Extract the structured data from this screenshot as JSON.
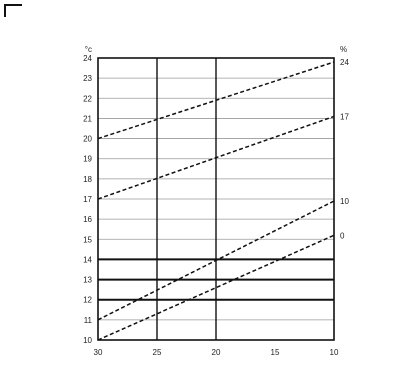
{
  "chart_data": {
    "type": "line",
    "title": "",
    "subtitle": "",
    "xlabel": "",
    "xlabel_line2": "",
    "ylabel_left": "",
    "ylabel_left_line2": "",
    "ylabel_right": "",
    "ylabel_right_line2": "",
    "y_unit": "°c",
    "right_unit": "%",
    "xlim": [
      30,
      10
    ],
    "ylim": [
      10,
      24
    ],
    "x_ticks": [
      30,
      25,
      20,
      15,
      10
    ],
    "y_ticks": [
      10,
      11,
      12,
      13,
      14,
      15,
      16,
      17,
      18,
      19,
      20,
      21,
      22,
      23,
      24
    ],
    "grid": true,
    "series": [
      {
        "label": "0",
        "points": [
          [
            30,
            10.0
          ],
          [
            10,
            15.2
          ]
        ]
      },
      {
        "label": "10",
        "points": [
          [
            30,
            11.0
          ],
          [
            10,
            16.9
          ]
        ]
      },
      {
        "label": "17",
        "points": [
          [
            30,
            17.0
          ],
          [
            10,
            21.1
          ]
        ]
      },
      {
        "label": "24",
        "points": [
          [
            30,
            20.0
          ],
          [
            10,
            23.8
          ]
        ]
      }
    ],
    "reference_lines_y": [
      12,
      13,
      14
    ],
    "reference_lines_x": [
      25,
      20
    ]
  }
}
